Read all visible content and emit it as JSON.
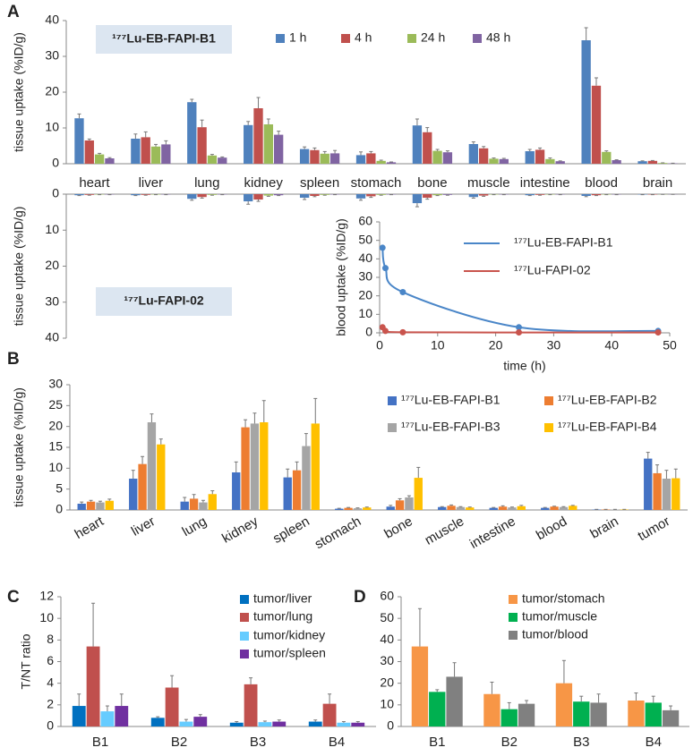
{
  "chart_data": [
    {
      "type": "bar",
      "panel_label": "A",
      "annotation": "¹⁷⁷Lu-EB-FAPI-B1",
      "y_label": "tissue uptake (%ID/g)",
      "categories": [
        "heart",
        "liver",
        "lung",
        "kidney",
        "spleen",
        "stomach",
        "bone",
        "muscle",
        "intestine",
        "blood",
        "brain"
      ],
      "ylim": [
        0,
        40
      ],
      "yticks": [
        0,
        10,
        20,
        30,
        40
      ],
      "series": [
        {
          "name": "1 h",
          "color": "#4f81bd",
          "values": [
            12.7,
            7,
            17.2,
            10.8,
            4.1,
            2.4,
            10.7,
            5.5,
            3.5,
            34.5,
            0.7
          ],
          "errors": [
            1.2,
            1.3,
            0.8,
            1,
            0.6,
            0.9,
            1.8,
            0.6,
            0.5,
            3.5,
            0.1
          ]
        },
        {
          "name": "4 h",
          "color": "#c0504d",
          "values": [
            6.5,
            7.4,
            10.2,
            15.5,
            3.8,
            2.9,
            8.8,
            4.3,
            3.9,
            21.8,
            0.8
          ],
          "errors": [
            0.4,
            1.5,
            2,
            3,
            0.6,
            0.5,
            1.3,
            0.5,
            0.5,
            2.2,
            0.1
          ]
        },
        {
          "name": "24 h",
          "color": "#9bbb59",
          "values": [
            2.6,
            4.8,
            2.3,
            11,
            2.8,
            0.8,
            3.6,
            1.4,
            1.3,
            3.3,
            0.2
          ],
          "errors": [
            0.3,
            0.6,
            0.3,
            1.5,
            0.6,
            0.2,
            0.4,
            0.2,
            0.3,
            0.3,
            0.05
          ]
        },
        {
          "name": "48 h",
          "color": "#8064a2",
          "values": [
            1.5,
            5.4,
            1.7,
            8.1,
            2.9,
            0.4,
            3.2,
            1.3,
            0.7,
            1,
            0.1
          ],
          "errors": [
            0.2,
            1,
            0.2,
            1,
            0.8,
            0.1,
            0.4,
            0.2,
            0.1,
            0.1,
            0.05
          ]
        }
      ]
    },
    {
      "type": "bar",
      "annotation": "¹⁷⁷Lu-FAPI-02",
      "y_label": "tissue uptake (%ID/g)",
      "y_inverted": true,
      "ylim": [
        0,
        40
      ],
      "yticks": [
        0,
        10,
        20,
        30,
        40
      ],
      "series": [
        {
          "color": "#4f81bd",
          "values": [
            0.3,
            0.3,
            1.3,
            2,
            1,
            1.2,
            2.5,
            0.8,
            0.3,
            0.5,
            0.1
          ],
          "errors": [
            0.1,
            0.1,
            0.4,
            0.8,
            0.5,
            0.5,
            1,
            0.3,
            0.1,
            0.2,
            0.05
          ]
        },
        {
          "color": "#c0504d",
          "values": [
            0.2,
            0.2,
            0.8,
            1.5,
            0.5,
            0.6,
            1,
            0.4,
            0.2,
            0.3,
            0.1
          ],
          "errors": [
            0.1,
            0.1,
            0.3,
            0.5,
            0.2,
            0.3,
            0.4,
            0.2,
            0.1,
            0.1,
            0.05
          ]
        },
        {
          "color": "#9bbb59",
          "values": [
            0.1,
            0.1,
            0.2,
            0.4,
            0.2,
            0.2,
            0.3,
            0.1,
            0.1,
            0.1,
            0.05
          ],
          "errors": [
            0.05,
            0.05,
            0.1,
            0.2,
            0.1,
            0.1,
            0.1,
            0.05,
            0.05,
            0.05,
            0.02
          ]
        },
        {
          "color": "#8064a2",
          "values": [
            0.1,
            0.1,
            0.1,
            0.3,
            0.1,
            0.1,
            0.2,
            0.1,
            0.1,
            0.1,
            0.05
          ],
          "errors": [
            0.05,
            0.05,
            0.05,
            0.1,
            0.05,
            0.05,
            0.1,
            0.05,
            0.05,
            0.05,
            0.02
          ]
        }
      ]
    },
    {
      "type": "line",
      "x_label": "time (h)",
      "y_label": "blood uptake (%ID/g)",
      "x": [
        0.5,
        1,
        4,
        24,
        48
      ],
      "xlim": [
        0,
        50
      ],
      "xticks": [
        0,
        10,
        20,
        30,
        40,
        50
      ],
      "ylim": [
        0,
        60
      ],
      "yticks": [
        0,
        10,
        20,
        30,
        40,
        50,
        60
      ],
      "series": [
        {
          "name": "¹⁷⁷Lu-EB-FAPI-B1",
          "color": "#4a86c8",
          "values": [
            46,
            35,
            22,
            3,
            1
          ]
        },
        {
          "name": "¹⁷⁷Lu-FAPI-02",
          "color": "#c9544d",
          "values": [
            3,
            1,
            0.3,
            0.2,
            0.2
          ]
        }
      ]
    },
    {
      "type": "bar",
      "panel_label": "B",
      "y_label": "tissue uptake (%ID/g)",
      "categories": [
        "heart",
        "liver",
        "lung",
        "kidney",
        "spleen",
        "stomach",
        "bone",
        "muscle",
        "intestine",
        "blood",
        "brain",
        "tumor"
      ],
      "ylim": [
        0,
        30
      ],
      "yticks": [
        0,
        5,
        10,
        15,
        20,
        25,
        30
      ],
      "series": [
        {
          "name": "¹⁷⁷Lu-EB-FAPI-B1",
          "color": "#4472c4",
          "values": [
            1.5,
            7.5,
            2,
            9,
            7.8,
            0.3,
            0.8,
            0.7,
            0.5,
            0.5,
            0.1,
            12.3
          ],
          "errors": [
            0.4,
            2,
            1,
            2.5,
            2,
            0.1,
            0.3,
            0.1,
            0.1,
            0.1,
            0.05,
            1.5
          ]
        },
        {
          "name": "¹⁷⁷Lu-EB-FAPI-B2",
          "color": "#ed7d31",
          "values": [
            2,
            11,
            2.7,
            19.8,
            9.5,
            0.5,
            2.3,
            1,
            0.8,
            0.8,
            0.1,
            8.8
          ],
          "errors": [
            0.3,
            1.8,
            1,
            1.8,
            2,
            0.1,
            0.4,
            0.2,
            0.2,
            0.1,
            0.05,
            2
          ]
        },
        {
          "name": "¹⁷⁷Lu-EB-FAPI-B3",
          "color": "#a5a5a5",
          "values": [
            1.8,
            21,
            1.8,
            20.7,
            15.3,
            0.4,
            3,
            0.7,
            0.6,
            0.7,
            0.1,
            7.5
          ],
          "errors": [
            0.3,
            2,
            0.5,
            2.5,
            3,
            0.1,
            0.4,
            0.1,
            0.1,
            0.1,
            0.05,
            2
          ]
        },
        {
          "name": "¹⁷⁷Lu-EB-FAPI-B4",
          "color": "#ffc000",
          "values": [
            2.2,
            15.7,
            3.8,
            21,
            20.7,
            0.6,
            7.7,
            0.6,
            0.9,
            1,
            0.1,
            7.6
          ],
          "errors": [
            0.4,
            1.3,
            0.8,
            5.2,
            6,
            0.1,
            2.5,
            0.1,
            0.2,
            0.1,
            0.05,
            2.2
          ]
        }
      ]
    },
    {
      "type": "bar",
      "panel_label": "C",
      "y_label": "T/NT ratio",
      "categories": [
        "B1",
        "B2",
        "B3",
        "B4"
      ],
      "ylim": [
        0,
        12
      ],
      "yticks": [
        0,
        2,
        4,
        6,
        8,
        10,
        12
      ],
      "series": [
        {
          "name": "tumor/liver",
          "color": "#0070c0",
          "values": [
            1.9,
            0.8,
            0.35,
            0.45
          ],
          "errors": [
            1.1,
            0.1,
            0.1,
            0.15
          ]
        },
        {
          "name": "tumor/lung",
          "color": "#c0504d",
          "values": [
            7.4,
            3.6,
            3.9,
            2.1
          ],
          "errors": [
            4,
            1.1,
            0.6,
            0.9
          ]
        },
        {
          "name": "tumor/kidney",
          "color": "#66ccff",
          "values": [
            1.4,
            0.45,
            0.4,
            0.35
          ],
          "errors": [
            0.5,
            0.2,
            0.1,
            0.1
          ]
        },
        {
          "name": "tumor/spleen",
          "color": "#7030a0",
          "values": [
            1.9,
            0.9,
            0.45,
            0.35
          ],
          "errors": [
            1.1,
            0.2,
            0.15,
            0.1
          ]
        }
      ]
    },
    {
      "type": "bar",
      "panel_label": "D",
      "categories": [
        "B1",
        "B2",
        "B3",
        "B4"
      ],
      "ylim": [
        0,
        60
      ],
      "yticks": [
        0,
        10,
        20,
        30,
        40,
        50,
        60
      ],
      "series": [
        {
          "name": "tumor/stomach",
          "color": "#f79646",
          "values": [
            37,
            15,
            20,
            12
          ],
          "errors": [
            17.5,
            5.5,
            10.5,
            3.5
          ]
        },
        {
          "name": "tumor/muscle",
          "color": "#00b050",
          "values": [
            16,
            8,
            11.5,
            11
          ],
          "errors": [
            1,
            3,
            2.5,
            3
          ]
        },
        {
          "name": "tumor/blood",
          "color": "#808080",
          "values": [
            23,
            10.5,
            11,
            7.5
          ],
          "errors": [
            6.5,
            1.5,
            4,
            2
          ]
        }
      ]
    }
  ]
}
